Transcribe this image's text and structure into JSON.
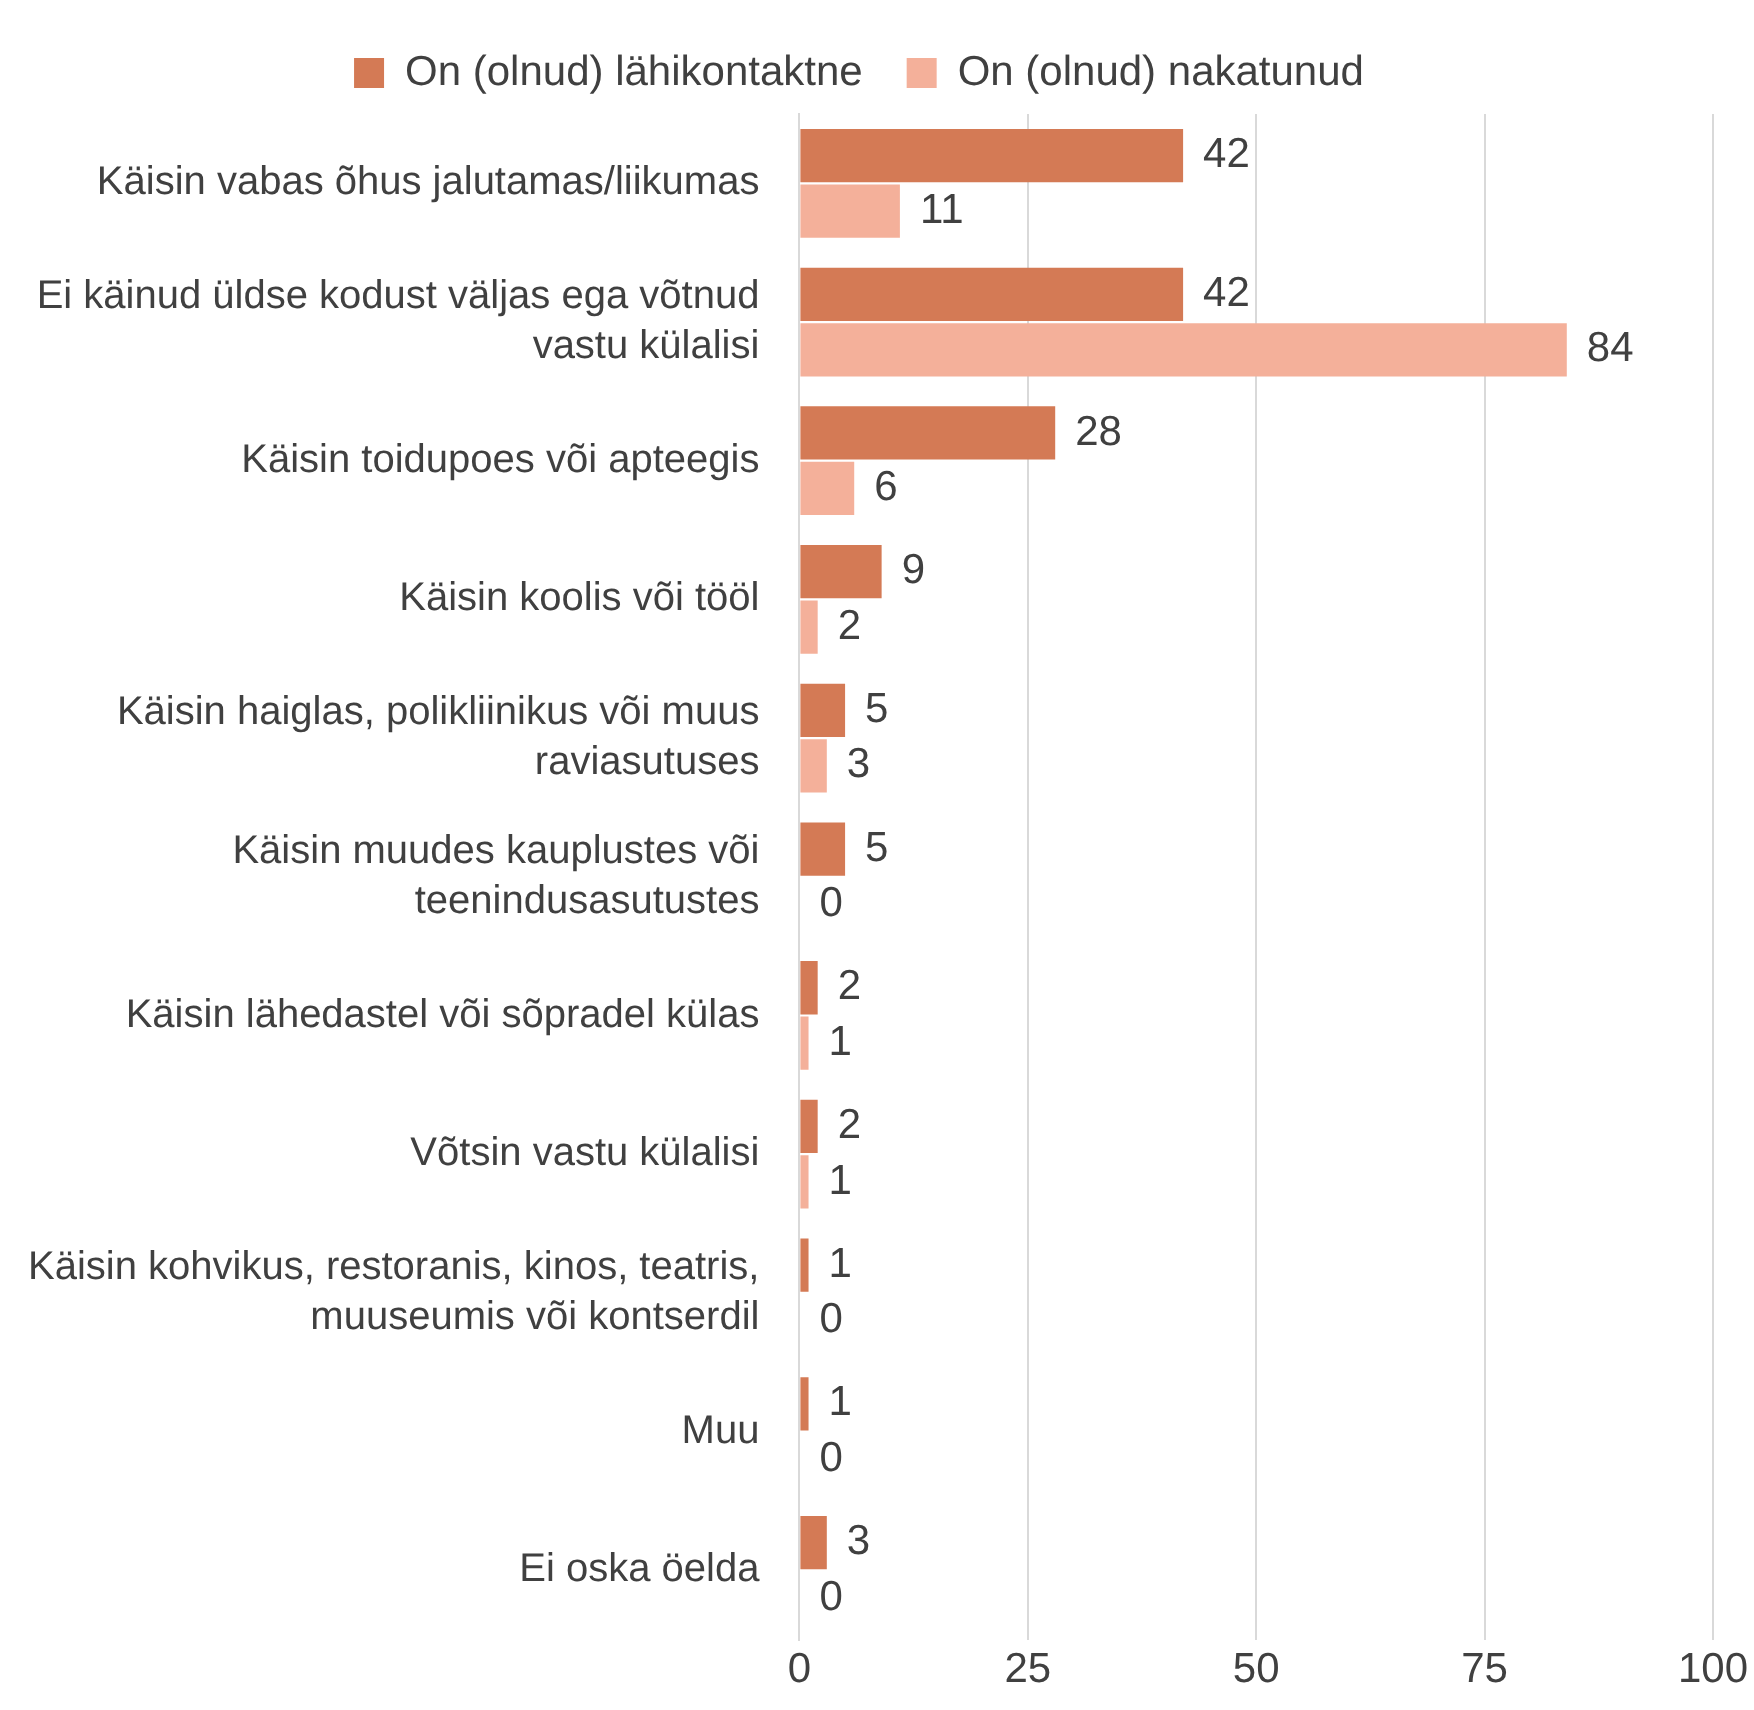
{
  "chart_data": {
    "type": "bar",
    "orientation": "horizontal",
    "categories": [
      "Käisin vabas õhus jalutamas/liikumas",
      "Ei käinud üldse kodust väljas ega võtnud vastu külalisi",
      "Käisin toidupoes või apteegis",
      "Käisin koolis või tööl",
      "Käisin haiglas, polikliinikus või muus raviasutuses",
      "Käisin muudes kauplustes või teenindusasutustes",
      "Käisin lähedastel või sõpradel külas",
      "Võtsin vastu külalisi",
      "Käisin kohvikus, restoranis, kinos, teatris, muuseumis või kontserdil",
      "Muu",
      "Ei oska öelda"
    ],
    "series": [
      {
        "name": "On (olnud) lähikontaktne",
        "color": "#d47a55",
        "values": [
          42,
          42,
          28,
          9,
          5,
          5,
          2,
          2,
          1,
          1,
          3
        ]
      },
      {
        "name": "On (olnud) nakatunud",
        "color": "#f4b09a",
        "values": [
          11,
          84,
          6,
          2,
          3,
          0,
          1,
          1,
          0,
          0,
          0
        ]
      }
    ],
    "xlim": [
      0,
      100
    ],
    "xticks": [
      0,
      25,
      50,
      75,
      100
    ],
    "grid": "x",
    "legend": "top",
    "data_labels": true
  }
}
